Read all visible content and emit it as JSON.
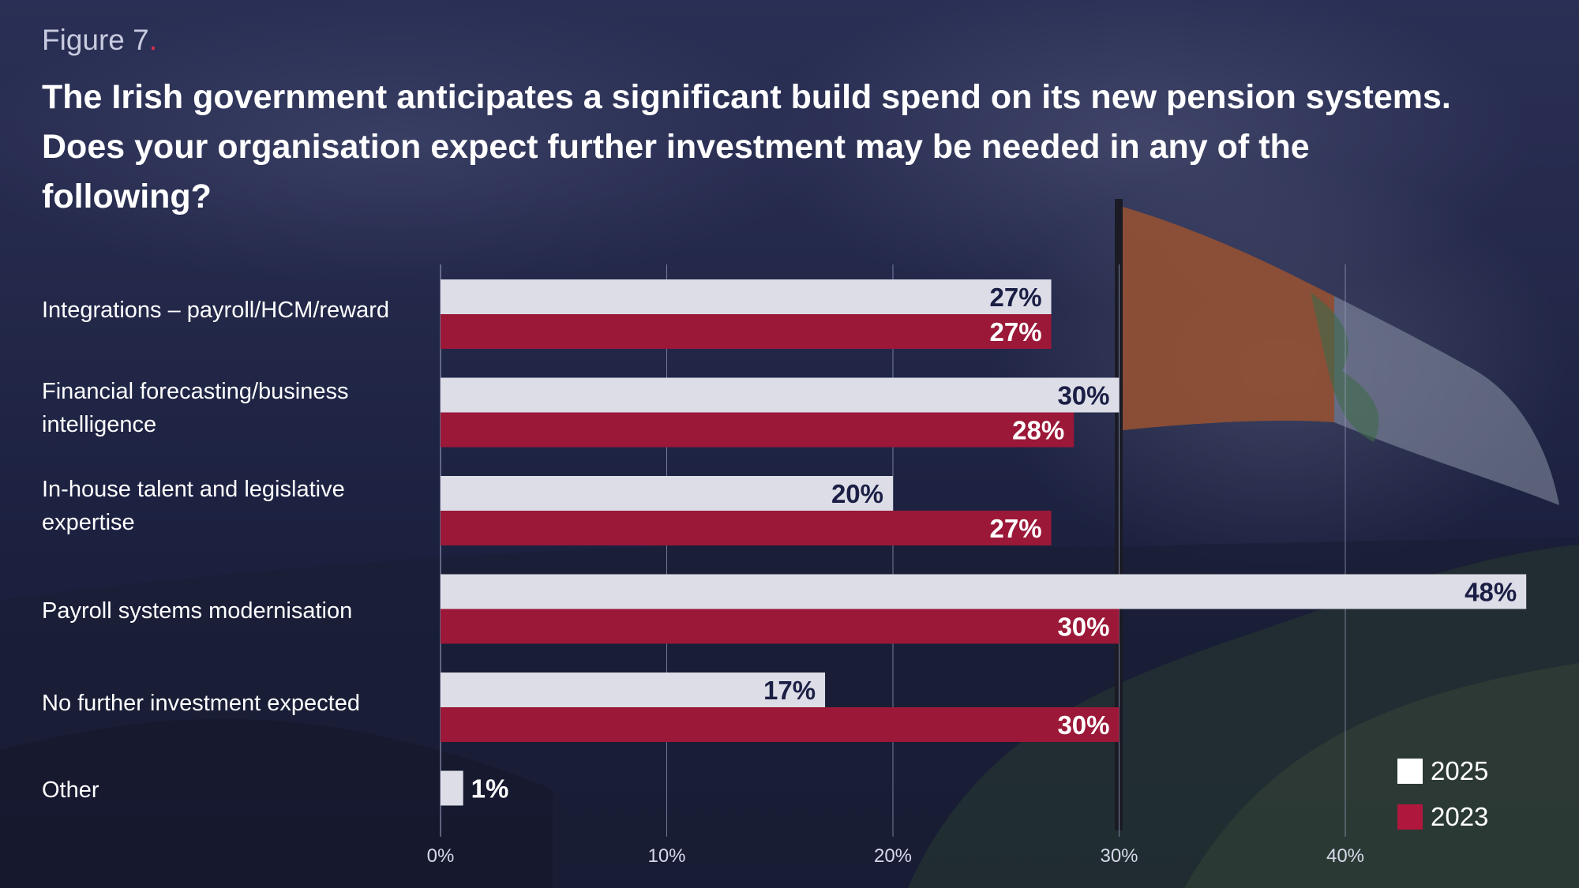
{
  "figure_label": "Figure 7",
  "figure_label_dot": ".",
  "colors": {
    "series_2025": "#dcdde6",
    "series_2023": "#9b1838",
    "label_on_light": "#1b1f45",
    "label_on_dark": "#ffffff",
    "grid": "#9ea3c4"
  },
  "chart_data": {
    "type": "bar",
    "orientation": "horizontal",
    "title": "The Irish government anticipates a significant build spend on its new pension systems. Does your organisation expect further investment may be needed in any of the following?",
    "categories": [
      "Integrations – payroll/HCM/reward",
      "Financial forecasting/business intelligence",
      "In-house talent and legislative expertise",
      "Payroll systems modernisation",
      "No further investment expected",
      "Other"
    ],
    "series": [
      {
        "name": "2025",
        "values": [
          27,
          30,
          20,
          48,
          17,
          1
        ]
      },
      {
        "name": "2023",
        "values": [
          27,
          28,
          27,
          30,
          30,
          null
        ]
      }
    ],
    "data_labels": {
      "2025": [
        "27%",
        "30%",
        "20%",
        "48%",
        "17%",
        "1%"
      ],
      "2023": [
        "27%",
        "28%",
        "27%",
        "30%",
        "30%",
        ""
      ]
    },
    "xlim": [
      0,
      48
    ],
    "xticks": [
      0,
      10,
      20,
      30,
      40
    ],
    "xtick_labels": [
      "0%",
      "10%",
      "20%",
      "30%",
      "40%"
    ],
    "grid": true,
    "legend_position": "bottom-right"
  }
}
